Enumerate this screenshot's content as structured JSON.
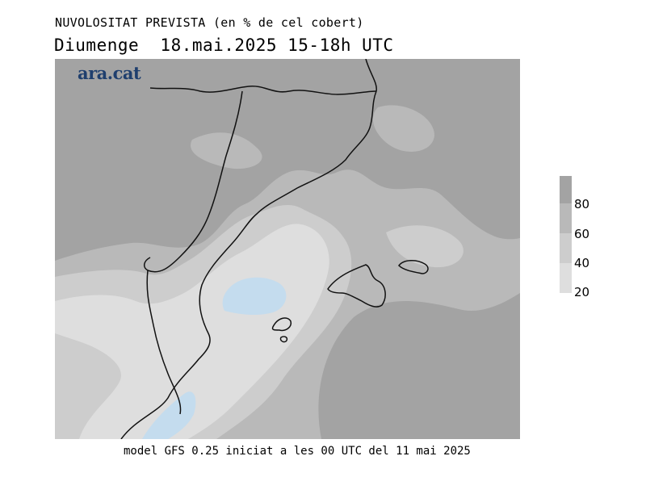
{
  "header": {
    "title": "NUVOLOSITAT PREVISTA (en % de cel cobert)",
    "subtitle": "Diumenge  18.mai.2025 15-18h UTC"
  },
  "map": {
    "logo": "ara.cat"
  },
  "legend": {
    "ticks": [
      "80",
      "60",
      "40",
      "20"
    ],
    "bands": [
      {
        "class": "80-100",
        "color": "#a3a3a3"
      },
      {
        "class": "60-80",
        "color": "#b9b9b9"
      },
      {
        "class": "40-60",
        "color": "#cdcdcd"
      },
      {
        "class": "20-40",
        "color": "#dedede"
      },
      {
        "class": "0-20",
        "color": "#c4dcee"
      }
    ]
  },
  "footer": {
    "note": "model GFS 0.25 iniciat a les 00 UTC del 11 mai 2025"
  }
}
